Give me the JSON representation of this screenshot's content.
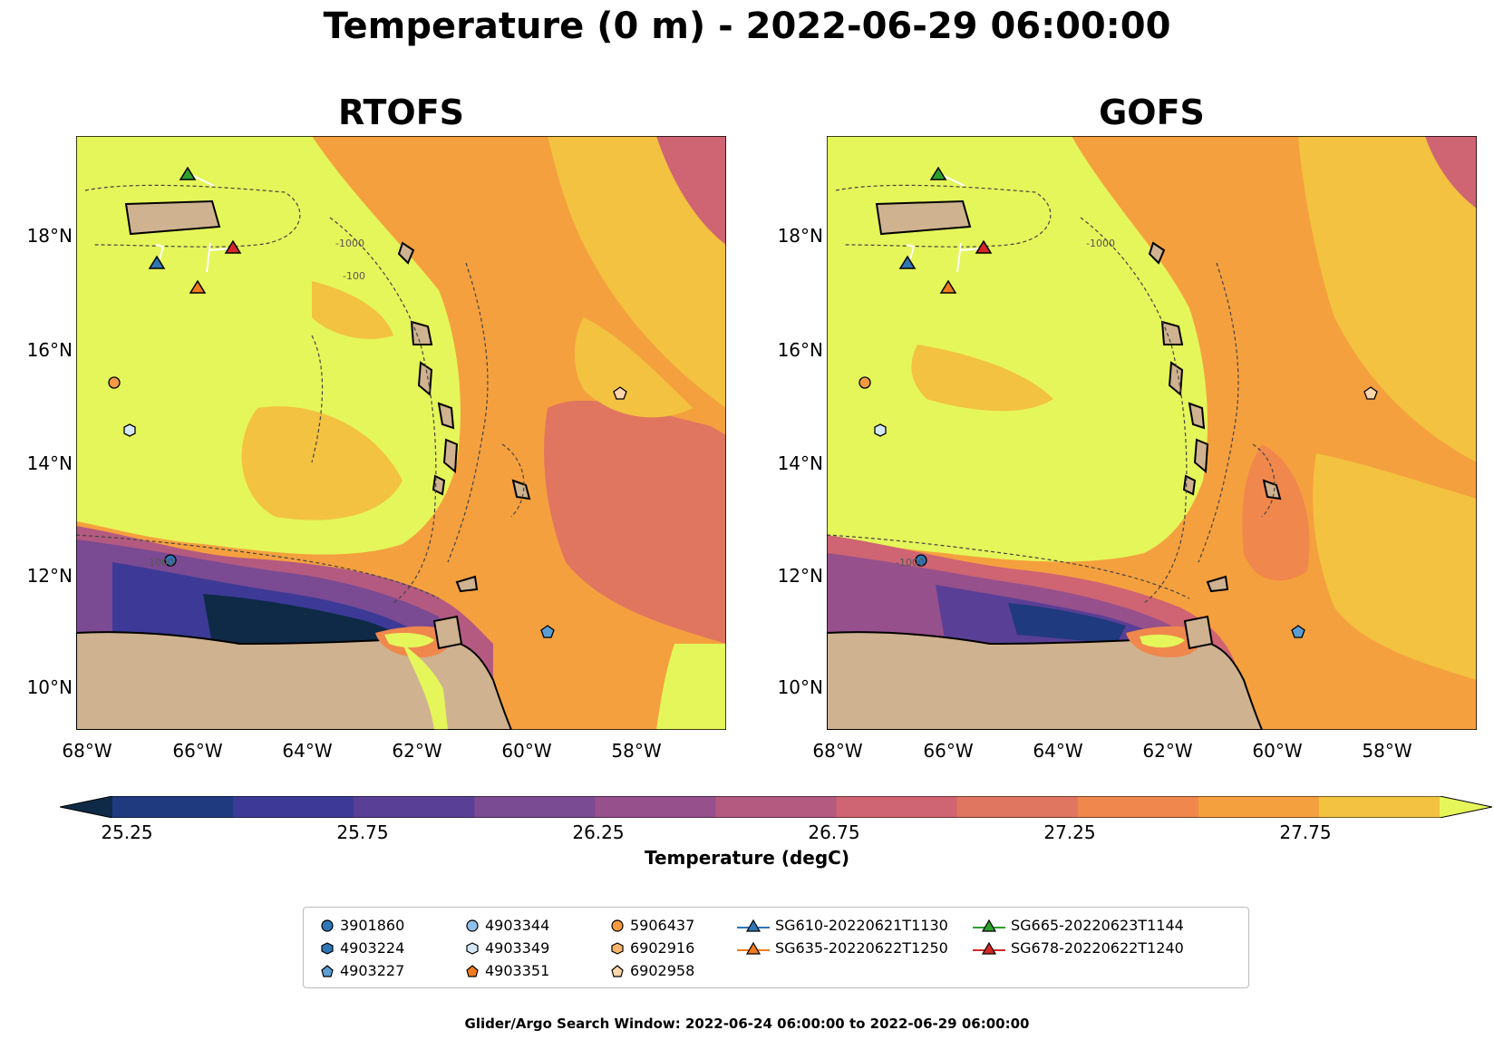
{
  "title": "Temperature (0 m) - 2022-06-29 06:00:00",
  "panels": [
    {
      "name": "RTOFS"
    },
    {
      "name": "GOFS"
    }
  ],
  "lat_ticks": [
    "18°N",
    "16°N",
    "14°N",
    "12°N",
    "10°N"
  ],
  "lon_ticks": [
    "68°W",
    "66°W",
    "64°W",
    "62°W",
    "60°W",
    "58°W"
  ],
  "colorbar": {
    "label": "Temperature (degC)",
    "ticks": [
      "25.25",
      "25.75",
      "26.25",
      "26.75",
      "27.25",
      "27.75"
    ],
    "colors": [
      "#0e2a47",
      "#1f3a7e",
      "#3c3a96",
      "#5a3f96",
      "#7a4a93",
      "#96508c",
      "#b45a80",
      "#cf6472",
      "#e07560",
      "#f0874c",
      "#f5a03e",
      "#f3c240",
      "#e5f65a"
    ]
  },
  "legend": {
    "argo": [
      {
        "id": "3901860",
        "shape": "circle",
        "color": "#2f76b5"
      },
      {
        "id": "4903224",
        "shape": "hexagon",
        "color": "#2f76b5"
      },
      {
        "id": "4903227",
        "shape": "pentagon",
        "color": "#5c9fd6"
      },
      {
        "id": "4903344",
        "shape": "circle",
        "color": "#8fc0ea"
      },
      {
        "id": "4903349",
        "shape": "hexagon",
        "color": "#d3e7f7"
      },
      {
        "id": "4903351",
        "shape": "pentagon",
        "color": "#f07b1c"
      },
      {
        "id": "5906437",
        "shape": "circle",
        "color": "#f59a43"
      },
      {
        "id": "6902916",
        "shape": "hexagon",
        "color": "#fbb46b"
      },
      {
        "id": "6902958",
        "shape": "pentagon",
        "color": "#fcd6ac"
      }
    ],
    "gliders": [
      {
        "id": "SG610-20220621T1130",
        "color": "#2f76b5"
      },
      {
        "id": "SG635-20220622T1250",
        "color": "#f07b1c"
      },
      {
        "id": "SG665-20220623T1144",
        "color": "#2ca02c"
      },
      {
        "id": "SG678-20220622T1240",
        "color": "#d62728"
      }
    ]
  },
  "contour_labels": [
    "-1000",
    "-1000",
    "-1000",
    "-1000",
    "-100"
  ],
  "footer": "Glider/Argo Search Window: 2022-06-24 06:00:00 to 2022-06-29 06:00:00"
}
